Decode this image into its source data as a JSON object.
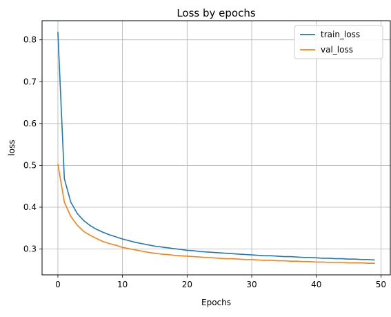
{
  "chart_data": {
    "type": "line",
    "title": "Loss by epochs",
    "xlabel": "Epochs",
    "ylabel": "loss",
    "xlim": [
      -2.45,
      51.45
    ],
    "ylim": [
      0.2383,
      0.8457
    ],
    "xticks": [
      0,
      10,
      20,
      30,
      40,
      50
    ],
    "yticks": [
      0.3,
      0.4,
      0.5,
      0.6,
      0.7,
      0.8
    ],
    "grid": true,
    "legend_position": "top-right",
    "x": [
      0,
      1,
      2,
      3,
      4,
      5,
      6,
      7,
      8,
      9,
      10,
      11,
      12,
      13,
      14,
      15,
      16,
      17,
      18,
      19,
      20,
      21,
      22,
      23,
      24,
      25,
      26,
      27,
      28,
      29,
      30,
      31,
      32,
      33,
      34,
      35,
      36,
      37,
      38,
      39,
      40,
      41,
      42,
      43,
      44,
      45,
      46,
      47,
      48,
      49
    ],
    "series": [
      {
        "name": "train_loss",
        "color": "#1f77b4",
        "values": [
          0.818,
          0.468,
          0.412,
          0.385,
          0.368,
          0.356,
          0.347,
          0.34,
          0.334,
          0.329,
          0.324,
          0.32,
          0.316,
          0.313,
          0.31,
          0.307,
          0.305,
          0.303,
          0.301,
          0.299,
          0.297,
          0.296,
          0.294,
          0.293,
          0.292,
          0.291,
          0.29,
          0.289,
          0.288,
          0.287,
          0.286,
          0.285,
          0.284,
          0.284,
          0.283,
          0.282,
          0.282,
          0.281,
          0.28,
          0.28,
          0.279,
          0.278,
          0.278,
          0.277,
          0.277,
          0.276,
          0.276,
          0.275,
          0.275,
          0.274
        ]
      },
      {
        "name": "val_loss",
        "color": "#ff7f0e",
        "values": [
          0.503,
          0.412,
          0.378,
          0.357,
          0.342,
          0.333,
          0.325,
          0.318,
          0.313,
          0.309,
          0.304,
          0.301,
          0.298,
          0.295,
          0.292,
          0.29,
          0.288,
          0.287,
          0.285,
          0.284,
          0.283,
          0.282,
          0.281,
          0.28,
          0.279,
          0.278,
          0.277,
          0.277,
          0.276,
          0.275,
          0.275,
          0.274,
          0.273,
          0.273,
          0.272,
          0.272,
          0.271,
          0.271,
          0.27,
          0.27,
          0.269,
          0.269,
          0.268,
          0.268,
          0.268,
          0.267,
          0.267,
          0.267,
          0.266,
          0.266
        ]
      }
    ]
  }
}
